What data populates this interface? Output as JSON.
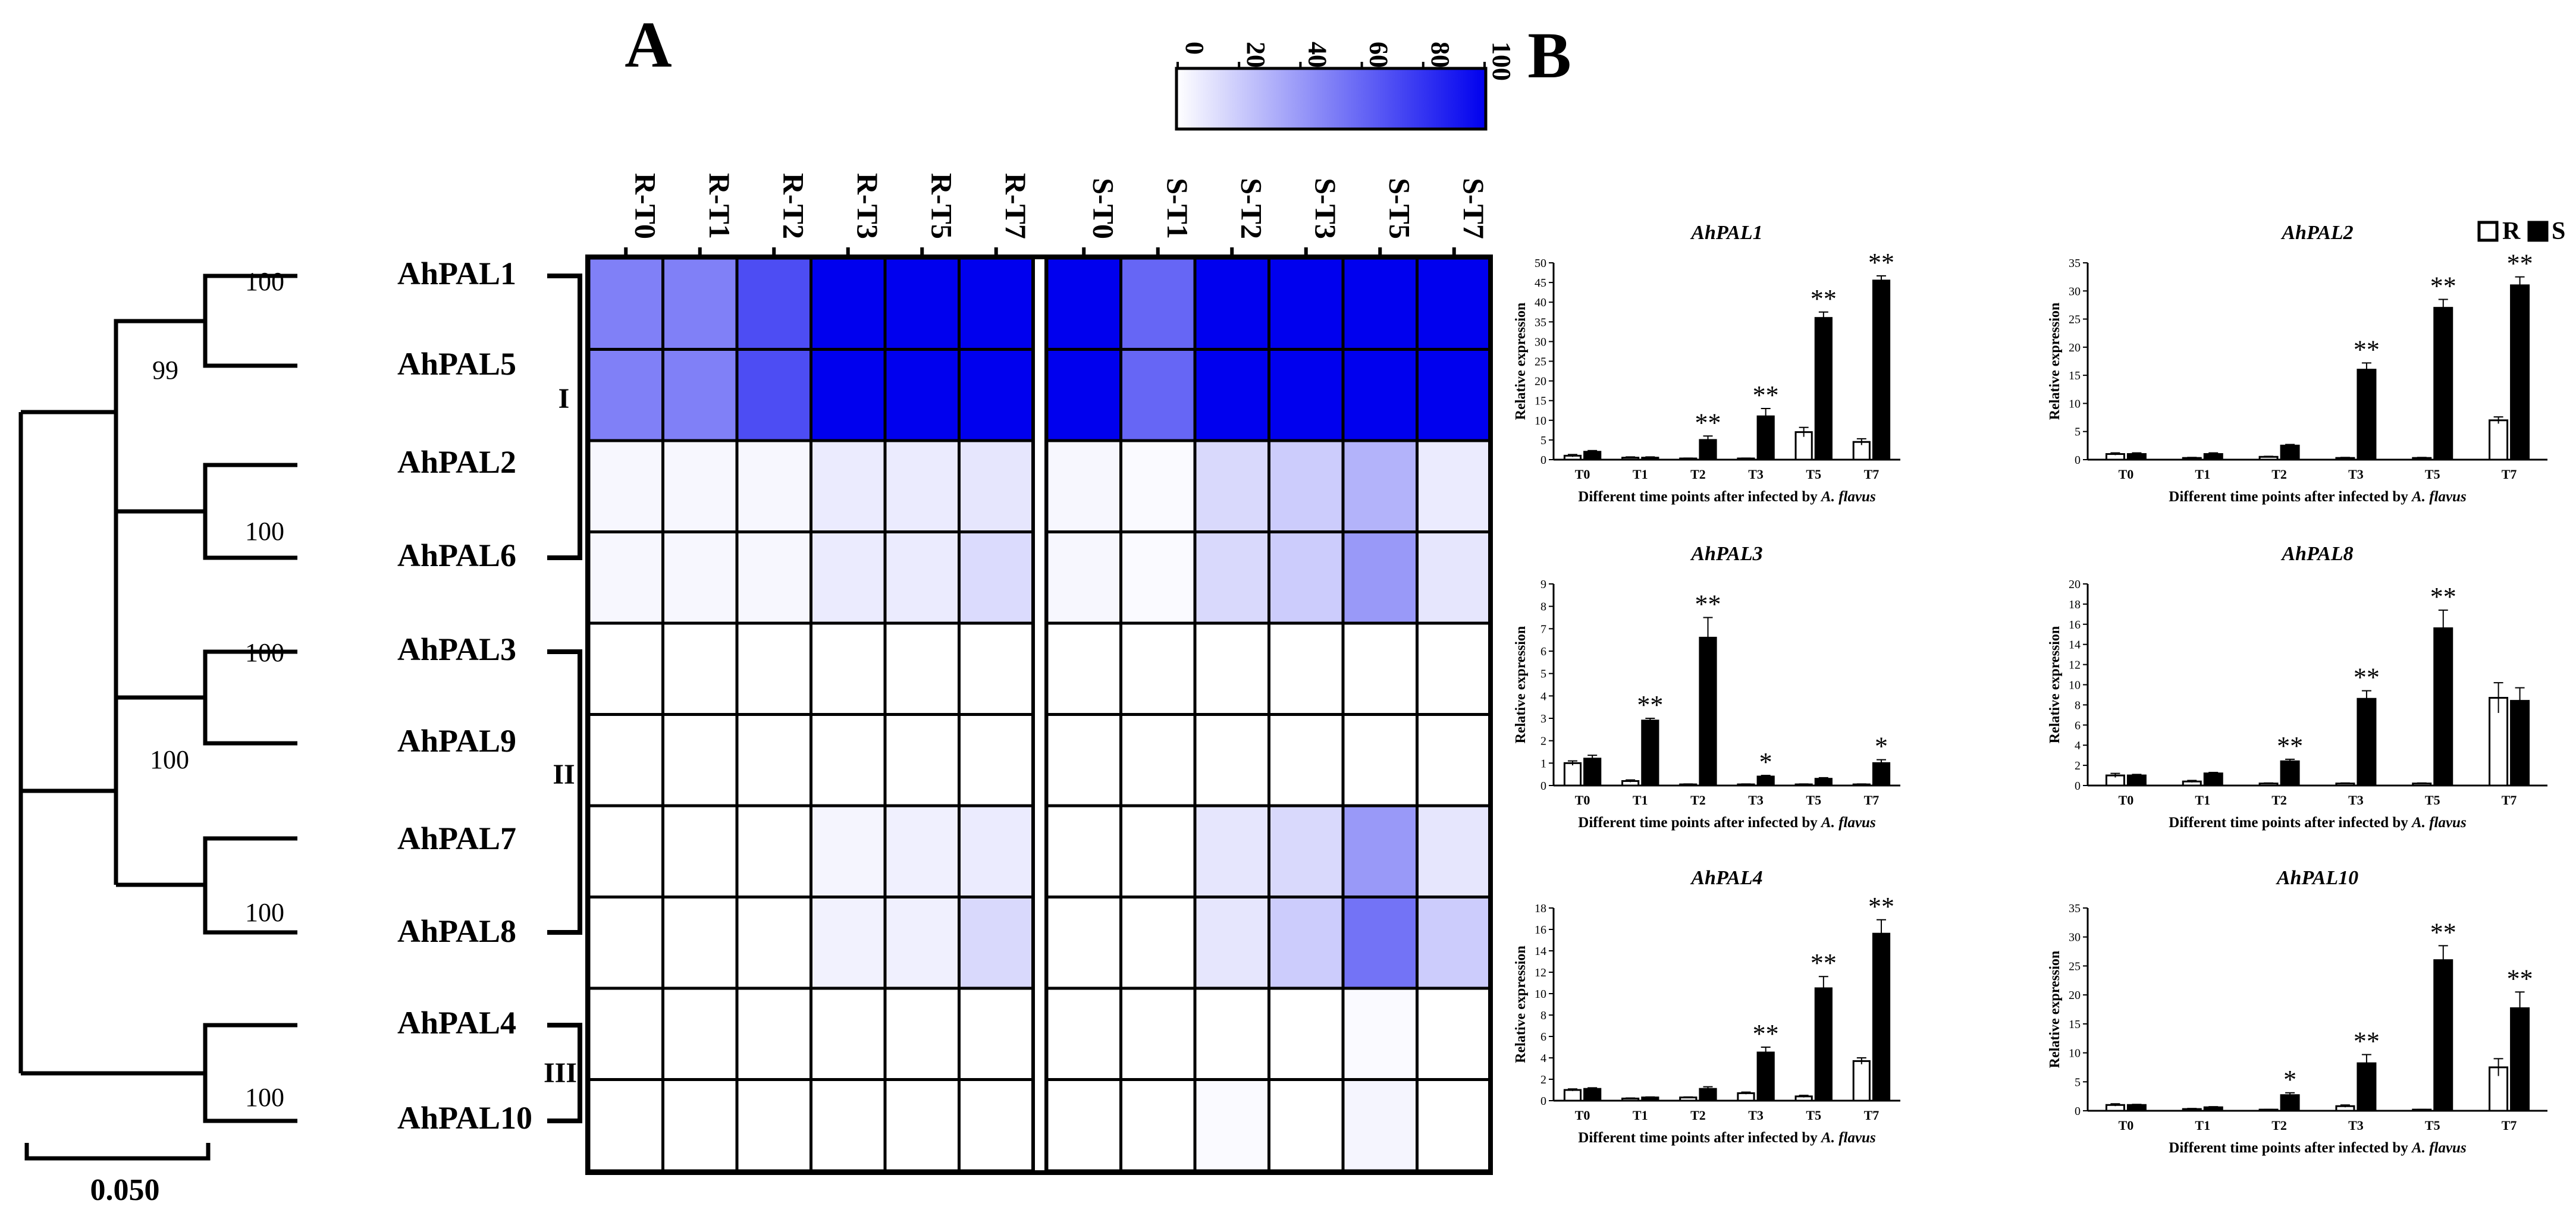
{
  "panel_labels": {
    "a": "A",
    "b": "B"
  },
  "tree": {
    "scale_label": "0.050",
    "bootstrap": [
      "100",
      "99",
      "100",
      "100",
      "100",
      "100",
      "100"
    ]
  },
  "genes": [
    "AhPAL1",
    "AhPAL5",
    "AhPAL2",
    "AhPAL6",
    "AhPAL3",
    "AhPAL9",
    "AhPAL7",
    "AhPAL8",
    "AhPAL4",
    "AhPAL10"
  ],
  "groups": [
    "I",
    "II",
    "III"
  ],
  "colorbar": {
    "ticks": [
      "0",
      "20",
      "40",
      "60",
      "80",
      "100"
    ],
    "color_low": "#ffffff",
    "color_high": "#0000ee"
  },
  "chart_data": [
    {
      "type": "heatmap",
      "title": "A",
      "columns_R": [
        "R-T0",
        "R-T1",
        "R-T2",
        "R-T3",
        "R-T5",
        "R-T7"
      ],
      "columns_S": [
        "S-T0",
        "S-T1",
        "S-T2",
        "S-T3",
        "S-T5",
        "S-T7"
      ],
      "rows": [
        "AhPAL1",
        "AhPAL5",
        "AhPAL2",
        "AhPAL6",
        "AhPAL3",
        "AhPAL9",
        "AhPAL7",
        "AhPAL8",
        "AhPAL4",
        "AhPAL10"
      ],
      "values_range": [
        0,
        100
      ],
      "values": [
        [
          50,
          50,
          70,
          100,
          100,
          100,
          100,
          60,
          100,
          100,
          100,
          100
        ],
        [
          50,
          50,
          70,
          100,
          100,
          100,
          100,
          60,
          100,
          100,
          100,
          100
        ],
        [
          3,
          3,
          3,
          8,
          8,
          10,
          3,
          2,
          15,
          20,
          30,
          8
        ],
        [
          3,
          3,
          3,
          8,
          8,
          14,
          3,
          2,
          15,
          20,
          40,
          10
        ],
        [
          0,
          0,
          0,
          0,
          0,
          0,
          0,
          0,
          0,
          0,
          0,
          0
        ],
        [
          0,
          0,
          0,
          0,
          0,
          0,
          0,
          0,
          0,
          0,
          0,
          0
        ],
        [
          0,
          0,
          0,
          4,
          6,
          8,
          0,
          0,
          10,
          15,
          40,
          10
        ],
        [
          0,
          0,
          0,
          5,
          6,
          15,
          0,
          0,
          10,
          20,
          55,
          20
        ],
        [
          0,
          0,
          0,
          0,
          0,
          0,
          0,
          0,
          0,
          0,
          2,
          0
        ],
        [
          0,
          0,
          0,
          0,
          0,
          0,
          0,
          0,
          2,
          0,
          4,
          0
        ]
      ]
    },
    {
      "type": "bar",
      "title": "AhPAL1",
      "ylabel": "Relative expression",
      "xlabel": "Different time points after infected by A. flavus",
      "categories": [
        "T0",
        "T1",
        "T2",
        "T3",
        "T5",
        "T7"
      ],
      "ylim": [
        0,
        50
      ],
      "yticks": [
        "0",
        "5",
        "10",
        "15",
        "20",
        "25",
        "30",
        "35",
        "40",
        "45",
        "50"
      ],
      "series": [
        {
          "name": "R",
          "values": [
            1,
            0.5,
            0.3,
            0.3,
            7,
            4.5
          ],
          "errors": [
            0.3,
            0.2,
            0.1,
            0.1,
            1.2,
            0.8
          ]
        },
        {
          "name": "S",
          "values": [
            2,
            0.5,
            5,
            11,
            36,
            45.5
          ],
          "errors": [
            0.3,
            0.2,
            1,
            2,
            1.5,
            1.2
          ]
        }
      ],
      "annotations": [
        "",
        "",
        "**",
        "**",
        "**",
        "**"
      ]
    },
    {
      "type": "bar",
      "title": "AhPAL2",
      "ylabel": "Relative expression",
      "xlabel": "Different time points after infected by A. flavus",
      "categories": [
        "T0",
        "T1",
        "T2",
        "T3",
        "T5",
        "T7"
      ],
      "ylim": [
        0,
        35
      ],
      "yticks": [
        "0",
        "5",
        "10",
        "15",
        "20",
        "25",
        "30",
        "35"
      ],
      "series": [
        {
          "name": "R",
          "values": [
            1,
            0.3,
            0.5,
            0.3,
            0.3,
            7
          ],
          "errors": [
            0.2,
            0.1,
            0.1,
            0.1,
            0.1,
            0.6
          ]
        },
        {
          "name": "S",
          "values": [
            1,
            1,
            2.5,
            16,
            27,
            31
          ],
          "errors": [
            0.2,
            0.2,
            0.2,
            1.2,
            1.5,
            1.5
          ]
        }
      ],
      "annotations": [
        "",
        "",
        "",
        "**",
        "**",
        "**"
      ]
    },
    {
      "type": "bar",
      "title": "AhPAL3",
      "ylabel": "Relative expression",
      "xlabel": "Different time points after infected by A. flavus",
      "categories": [
        "T0",
        "T1",
        "T2",
        "T3",
        "T5",
        "T7"
      ],
      "ylim": [
        0,
        9
      ],
      "yticks": [
        "0",
        "1",
        "2",
        "3",
        "4",
        "5",
        "6",
        "7",
        "8",
        "9"
      ],
      "series": [
        {
          "name": "R",
          "values": [
            1,
            0.2,
            0.05,
            0.05,
            0.05,
            0.05
          ],
          "errors": [
            0.1,
            0.05,
            0.02,
            0.02,
            0.02,
            0.02
          ]
        },
        {
          "name": "S",
          "values": [
            1.2,
            2.9,
            6.6,
            0.4,
            0.3,
            1
          ],
          "errors": [
            0.15,
            0.1,
            0.9,
            0.05,
            0.05,
            0.15
          ]
        }
      ],
      "annotations": [
        "",
        "**",
        "**",
        "*",
        "",
        "*"
      ]
    },
    {
      "type": "bar",
      "title": "AhPAL8",
      "ylabel": "Relative expression",
      "xlabel": "Different time points after infected by A. flavus",
      "categories": [
        "T0",
        "T1",
        "T2",
        "T3",
        "T5",
        "T7"
      ],
      "ylim": [
        0,
        20
      ],
      "yticks": [
        "0",
        "2",
        "4",
        "6",
        "8",
        "10",
        "12",
        "14",
        "16",
        "18",
        "20"
      ],
      "series": [
        {
          "name": "R",
          "values": [
            1,
            0.4,
            0.2,
            0.2,
            0.2,
            8.7
          ],
          "errors": [
            0.2,
            0.1,
            0.05,
            0.05,
            0.05,
            1.5
          ]
        },
        {
          "name": "S",
          "values": [
            1,
            1.2,
            2.4,
            8.6,
            15.6,
            8.4
          ],
          "errors": [
            0.1,
            0.1,
            0.2,
            0.8,
            1.8,
            1.3
          ]
        }
      ],
      "annotations": [
        "",
        "",
        "**",
        "**",
        "**",
        ""
      ]
    },
    {
      "type": "bar",
      "title": "AhPAL4",
      "ylabel": "Relative expression",
      "xlabel": "Different time points after infected by A. flavus",
      "categories": [
        "T0",
        "T1",
        "T2",
        "T3",
        "T5",
        "T7"
      ],
      "ylim": [
        0,
        18
      ],
      "yticks": [
        "0",
        "2",
        "4",
        "6",
        "8",
        "10",
        "12",
        "14",
        "16",
        "18"
      ],
      "series": [
        {
          "name": "R",
          "values": [
            1,
            0.2,
            0.3,
            0.7,
            0.4,
            3.7
          ],
          "errors": [
            0.1,
            0.05,
            0.05,
            0.1,
            0.1,
            0.3
          ]
        },
        {
          "name": "S",
          "values": [
            1.1,
            0.3,
            1.1,
            4.5,
            10.5,
            15.6
          ],
          "errors": [
            0.1,
            0.05,
            0.2,
            0.5,
            1.1,
            1.3
          ]
        }
      ],
      "annotations": [
        "",
        "",
        "",
        "**",
        "**",
        "**"
      ]
    },
    {
      "type": "bar",
      "title": "AhPAL10",
      "ylabel": "Relative expression",
      "xlabel": "Different time points after infected by A. flavus",
      "categories": [
        "T0",
        "T1",
        "T2",
        "T3",
        "T5",
        "T7"
      ],
      "ylim": [
        0,
        35
      ],
      "yticks": [
        "0",
        "5",
        "10",
        "15",
        "20",
        "25",
        "30",
        "35"
      ],
      "series": [
        {
          "name": "R",
          "values": [
            1,
            0.3,
            0.2,
            0.8,
            0.2,
            7.5
          ],
          "errors": [
            0.2,
            0.1,
            0.05,
            0.2,
            0.05,
            1.5
          ]
        },
        {
          "name": "S",
          "values": [
            1,
            0.6,
            2.7,
            8.2,
            26,
            17.7
          ],
          "errors": [
            0.1,
            0.1,
            0.4,
            1.5,
            2.5,
            2.8
          ]
        }
      ],
      "annotations": [
        "",
        "",
        "*",
        "**",
        "**",
        "**"
      ]
    }
  ],
  "legend": {
    "r_label": "R",
    "s_label": "S"
  }
}
